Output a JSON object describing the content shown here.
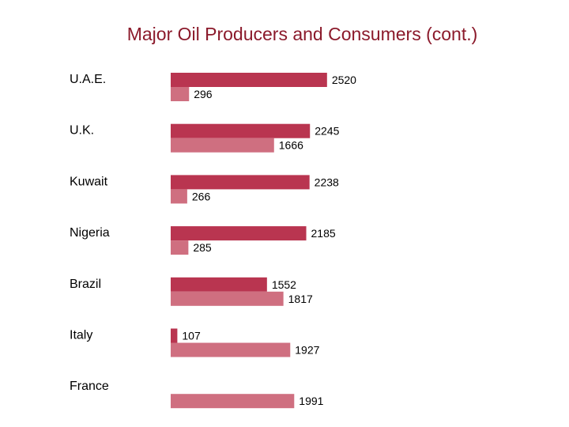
{
  "slide": {
    "title": "Major Oil Producers and Consumers (cont.)"
  },
  "chart_data": {
    "type": "bar",
    "orientation": "horizontal",
    "title": "Major Oil Producers and Consumers (cont.)",
    "categories": [
      "U.A.E.",
      "U.K.",
      "Kuwait",
      "Nigeria",
      "Brazil",
      "Italy",
      "France"
    ],
    "series": [
      {
        "color": "#b93550",
        "values": [
          2520,
          2245,
          2238,
          2185,
          1552,
          107,
          null
        ]
      },
      {
        "color": "#cf6f80",
        "values": [
          296,
          1666,
          266,
          285,
          1817,
          1927,
          1991
        ]
      }
    ],
    "value_labels": [
      [
        "2520",
        "2245",
        "2238",
        "2185",
        "1552",
        "107",
        ""
      ],
      [
        "296",
        "1666",
        "266",
        "285",
        "1817",
        "1927",
        "1991"
      ]
    ],
    "xlim": [
      0,
      2900
    ],
    "grid": false,
    "legend": "none",
    "axes_visible": false
  }
}
